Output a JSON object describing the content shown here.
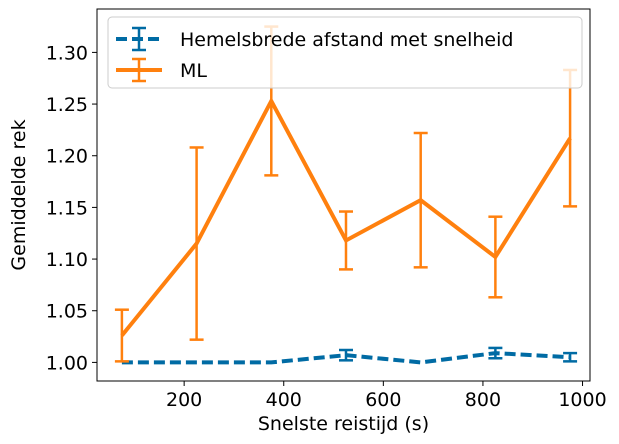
{
  "chart_data": {
    "type": "line",
    "title": "",
    "xlabel": "Snelste reistijd (s)",
    "ylabel": "Gemiddelde rek",
    "xlim": [
      25,
      1015
    ],
    "ylim": [
      0.982,
      1.342
    ],
    "xticks": [
      200,
      400,
      600,
      800,
      1000
    ],
    "xtick_labels": [
      "200",
      "400",
      "600",
      "800",
      "1000"
    ],
    "yticks": [
      1.0,
      1.05,
      1.1,
      1.15,
      1.2,
      1.25,
      1.3
    ],
    "ytick_labels": [
      "1.00",
      "1.05",
      "1.10",
      "1.15",
      "1.20",
      "1.25",
      "1.30"
    ],
    "grid": false,
    "legend_position": "top-left",
    "series": [
      {
        "name": "Hemelsbrede afstand met snelheid",
        "color": "#006ba4",
        "line_style": "dashed",
        "x": [
          75,
          225,
          375,
          525,
          675,
          825,
          975
        ],
        "y": [
          1.0,
          1.0,
          1.0,
          1.007,
          1.0,
          1.009,
          1.005
        ],
        "yerr": [
          0,
          0,
          0,
          0.005,
          0,
          0.005,
          0.004
        ]
      },
      {
        "name": "ML",
        "color": "#ff800e",
        "line_style": "solid",
        "x": [
          75,
          225,
          375,
          525,
          675,
          825,
          975
        ],
        "y": [
          1.026,
          1.115,
          1.253,
          1.118,
          1.157,
          1.102,
          1.217
        ],
        "yerr": [
          0.025,
          0.093,
          0.072,
          0.028,
          0.065,
          0.039,
          0.066
        ]
      }
    ]
  }
}
